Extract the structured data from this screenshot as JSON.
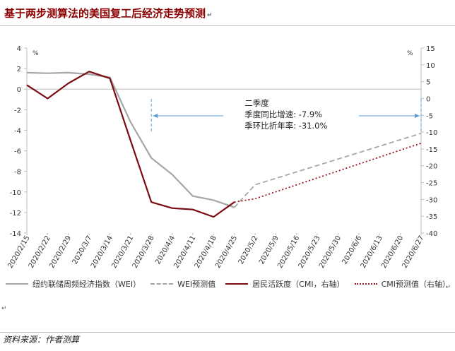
{
  "title": "基于两步测算法的美国复工后经济走势预测",
  "title_mark": "↵",
  "legend_mark": "↵",
  "small_mark": "↵",
  "source": "资料来源：作者测算",
  "chart_data": {
    "type": "line",
    "x": [
      "2020/2/15",
      "2020/2/22",
      "2020/2/29",
      "2020/3/7",
      "2020/3/14",
      "2020/3/21",
      "2020/3/28",
      "2020/4/4",
      "2020/4/11",
      "2020/4/18",
      "2020/4/25",
      "2020/5/2",
      "2020/5/9",
      "2020/5/16",
      "2020/5/23",
      "2020/5/30",
      "2020/6/6",
      "2020/6/13",
      "2020/6/20",
      "2020/6/27"
    ],
    "left_axis": {
      "label": "%",
      "range": [
        -14,
        4
      ],
      "ticks": [
        4,
        2,
        0,
        -2,
        -4,
        -6,
        -8,
        -10,
        -12,
        -14
      ]
    },
    "right_axis": {
      "label": "%",
      "range": [
        -40,
        15
      ],
      "ticks": [
        15,
        10,
        5,
        0,
        -5,
        -10,
        -15,
        -20,
        -25,
        -30,
        -35,
        -40
      ]
    },
    "series": [
      {
        "name": "纽约联储周频经济指数（WEI）",
        "axis": "left",
        "color": "#a6a6a6",
        "dash": "solid",
        "x": [
          "2020/2/15",
          "2020/2/22",
          "2020/2/29",
          "2020/3/7",
          "2020/3/14",
          "2020/3/21",
          "2020/3/28",
          "2020/4/4",
          "2020/4/11",
          "2020/4/18",
          "2020/4/25"
        ],
        "values": [
          1.6,
          1.55,
          1.6,
          1.45,
          1.15,
          -3.2,
          -6.7,
          -8.3,
          -10.4,
          -10.8,
          -11.5
        ]
      },
      {
        "name": "WEI预测值",
        "axis": "left",
        "color": "#a6a6a6",
        "dash": "dashed",
        "x": [
          "2020/4/25",
          "2020/5/2",
          "2020/6/27"
        ],
        "values": [
          -11.5,
          -9.3,
          -4.3
        ]
      },
      {
        "name": "居民活跃度（CMI，右轴）",
        "axis": "right",
        "color": "#7b0c12",
        "dash": "solid",
        "x": [
          "2020/2/15",
          "2020/2/22",
          "2020/2/29",
          "2020/3/7",
          "2020/3/14",
          "2020/3/21",
          "2020/3/28",
          "2020/4/4",
          "2020/4/11",
          "2020/4/18",
          "2020/4/25"
        ],
        "values": [
          4.0,
          0.0,
          4.5,
          8.0,
          6.0,
          -12.5,
          -30.8,
          -32.6,
          -33.0,
          -35.2,
          -30.8
        ]
      },
      {
        "name": "CMI预测值（右轴）",
        "axis": "right",
        "color": "#9b111e",
        "dash": "dotted",
        "x": [
          "2020/4/25",
          "2020/5/2",
          "2020/6/27"
        ],
        "values": [
          -30.8,
          -29.8,
          -13.3
        ]
      }
    ],
    "annotation": {
      "lines": [
        "二季度",
        "季度同比增速: -7.9%",
        "季环比折年率: -31.0%"
      ],
      "range_x": [
        "2020/3/28",
        "2020/6/27"
      ]
    }
  }
}
